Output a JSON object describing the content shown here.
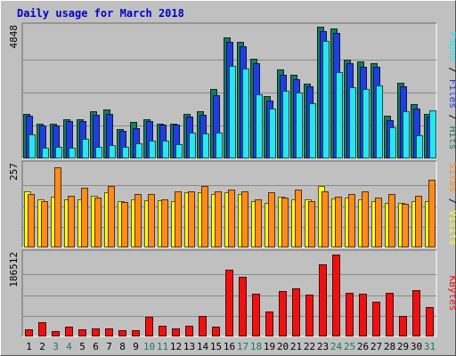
{
  "colors": {
    "background": "#c0c0c0",
    "panel": "#c0c0c0",
    "title": "#0000cc",
    "hits": "#1a7a5a",
    "files": "#1f3fdc",
    "pages": "#28e6f0",
    "visits": "#ffff1a",
    "sites": "#ff8c1a",
    "kbytes": "#ee1111",
    "weekend_label": "#1a7a5a",
    "weekday_label": "#000000"
  },
  "chart_data": {
    "type": "bar",
    "title": "Daily usage for March 2018",
    "categories": [
      "1",
      "2",
      "3",
      "4",
      "5",
      "6",
      "7",
      "8",
      "9",
      "10",
      "11",
      "12",
      "13",
      "14",
      "15",
      "16",
      "17",
      "18",
      "19",
      "20",
      "21",
      "22",
      "23",
      "24",
      "25",
      "26",
      "27",
      "28",
      "29",
      "30",
      "31"
    ],
    "weekend_days": [
      "3",
      "4",
      "10",
      "11",
      "17",
      "18",
      "24",
      "25",
      "31"
    ],
    "panels": [
      {
        "name": "hits-files-pages",
        "ymax_label": "4848",
        "ymax": 4848,
        "right_label": [
          "Pages",
          " / ",
          "Files",
          " / ",
          "Hits"
        ],
        "right_label_colors": [
          "pages",
          "sep",
          "files",
          "sep",
          "hits"
        ],
        "series": [
          {
            "name": "Hits",
            "color_key": "hits",
            "values": [
              1650,
              1275,
              1275,
              1440,
              1440,
              1740,
              1800,
              1070,
              1350,
              1440,
              1275,
              1275,
              1650,
              1740,
              2550,
              4450,
              4300,
              3680,
              2280,
              3260,
              3070,
              2750,
              4850,
              4770,
              3650,
              3580,
              3520,
              1560,
              2770,
              1990,
              1630
            ]
          },
          {
            "name": "Files",
            "color_key": "files",
            "values": [
              1580,
              1220,
              1220,
              1360,
              1360,
              1590,
              1640,
              1020,
              1130,
              1360,
              1230,
              1230,
              1530,
              1590,
              2330,
              4290,
              4130,
              3510,
              2140,
              3090,
              2920,
              2660,
              4700,
              4610,
              3510,
              3380,
              3360,
              1420,
              2640,
              1840,
              1550
            ]
          },
          {
            "name": "Pages",
            "color_key": "pages",
            "values": [
              900,
              390,
              430,
              390,
              710,
              430,
              490,
              440,
              550,
              640,
              650,
              540,
              950,
              910,
              960,
              3400,
              3310,
              2350,
              1840,
              2480,
              2410,
              2040,
              4310,
              3170,
              2620,
              2560,
              2700,
              1150,
              1750,
              850,
              1760
            ]
          }
        ]
      },
      {
        "name": "sites-visits",
        "ymax_label": "257",
        "ymax": 257,
        "right_label": [
          "Sites",
          " / ",
          "Visits"
        ],
        "right_label_colors": [
          "sites",
          "sep",
          "visits"
        ],
        "series": [
          {
            "name": "Visits",
            "color_key": "visits",
            "values": [
              175,
              148,
              158,
              150,
              150,
              160,
              170,
              145,
              148,
              147,
              146,
              145,
              170,
              170,
              167,
              170,
              167,
              145,
              137,
              158,
              150,
              150,
              190,
              153,
              155,
              150,
              145,
              137,
              138,
              145,
              143
            ]
          },
          {
            "name": "Sites",
            "color_key": "sites",
            "values": [
              165,
              145,
              250,
              160,
              185,
              155,
              190,
              140,
              165,
              165,
              150,
              175,
              175,
              190,
              175,
              180,
              175,
              150,
              170,
              155,
              180,
              145,
              175,
              158,
              165,
              175,
              155,
              165,
              135,
              159,
              210
            ]
          }
        ]
      },
      {
        "name": "kbytes",
        "ymax_label": "186512",
        "ymax": 186512,
        "right_label": [
          "KBytes"
        ],
        "right_label_colors": [
          "kbytes"
        ],
        "series": [
          {
            "name": "KBytes",
            "color_key": "kbytes",
            "values": [
              16000,
              32000,
              13000,
              22000,
              17000,
              18000,
              19000,
              15000,
              14000,
              45000,
              25000,
              19000,
              24000,
              47000,
              23000,
              150000,
              135000,
              97000,
              56000,
              102000,
              108000,
              95000,
              162000,
              185000,
              98000,
              97000,
              79000,
              98000,
              47000,
              105000,
              66000
            ]
          }
        ]
      }
    ]
  }
}
